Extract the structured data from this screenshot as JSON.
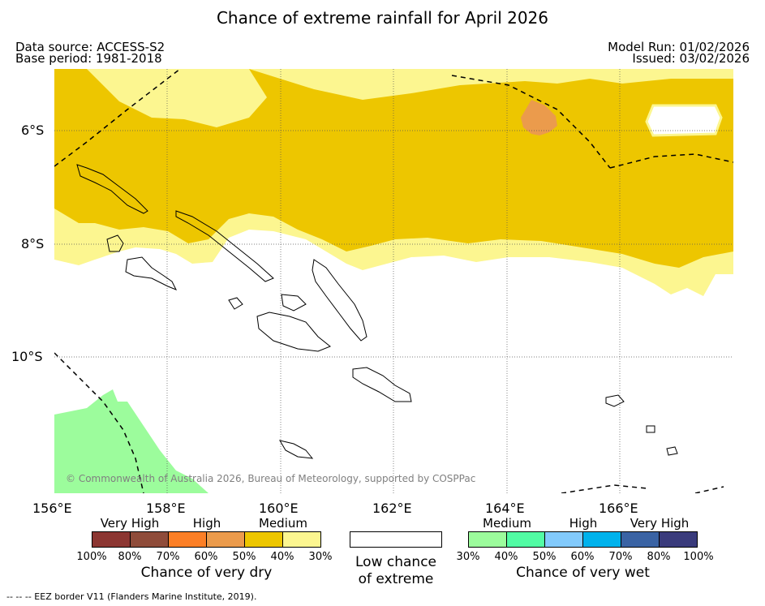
{
  "header": {
    "title": "Chance of extreme rainfall for April 2026",
    "data_source": "Data source: ACCESS-S2",
    "base_period": "Base period: 1981-2018",
    "model_run": "Model Run: 01/02/2026",
    "issued": "Issued: 03/02/2026"
  },
  "map": {
    "copyright": "© Commonwealth of Australia 2026, Bureau of Meteorology, supported by COSPPac",
    "lon_ticks": [
      "156°E",
      "158°E",
      "160°E",
      "162°E",
      "164°E",
      "166°E"
    ],
    "lat_ticks": [
      "6°S",
      "8°S",
      "10°S"
    ],
    "colors": {
      "dry_medium": "#edc600",
      "dry_medium_light": "#fcf690",
      "dry_high_light": "#eb9b4c",
      "wet_medium": "#9cfc9c",
      "coast": "#000000",
      "grid": "#555555"
    }
  },
  "legend": {
    "dry": {
      "categories": [
        "Very High",
        "High",
        "Medium"
      ],
      "percentages": [
        "100%",
        "80%",
        "70%",
        "60%",
        "50%",
        "40%",
        "30%"
      ],
      "colors": [
        "#8c3632",
        "#8f4c3a",
        "#fc7f26",
        "#eb9b4c",
        "#edc600",
        "#fcf690"
      ],
      "caption": "Chance of very dry"
    },
    "low": {
      "caption_line1": "Low chance",
      "caption_line2": "of extreme",
      "color": "#ffffff"
    },
    "wet": {
      "categories": [
        "Medium",
        "High",
        "Very High"
      ],
      "percentages": [
        "30%",
        "40%",
        "50%",
        "60%",
        "70%",
        "80%",
        "100%"
      ],
      "colors": [
        "#9cfc9c",
        "#52fca4",
        "#82cafc",
        "#00b2ec",
        "#3a63a4",
        "#3a3b7c"
      ],
      "caption": "Chance of very wet"
    }
  },
  "footer": {
    "eez_note": "--  --  -- EEZ border V11 (Flanders Marine Institute, 2019)."
  }
}
